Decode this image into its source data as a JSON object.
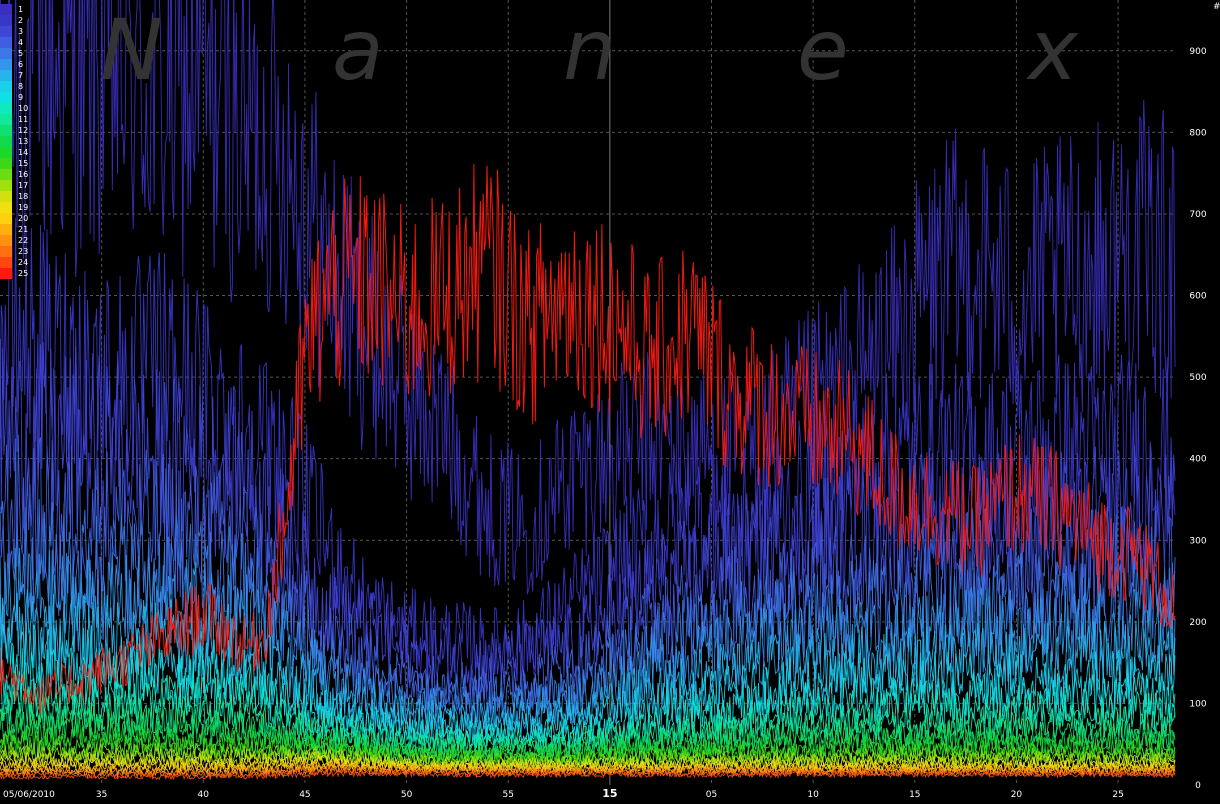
{
  "watermark": [
    "N",
    "a",
    "n",
    "e",
    "x"
  ],
  "colors": {
    "background": "#000000",
    "grid": "#555555",
    "tick_label": "#ffffff",
    "watermark": "#333333"
  },
  "chart_data": {
    "type": "line",
    "date_label": "05/06/2010",
    "y_unit_label": "#",
    "ylim": [
      0,
      950
    ],
    "y_ticks": [
      0,
      100,
      200,
      300,
      400,
      500,
      600,
      700,
      800,
      900
    ],
    "x_tick_labels": [
      "35",
      "40",
      "45",
      "50",
      "55",
      "15",
      "05",
      "10",
      "15",
      "20",
      "25"
    ],
    "x_tick_bold_index": 5,
    "grid": true,
    "legend_position": "top-left",
    "x_range_minutes": 57.8,
    "x_ticks_minutes": [
      5,
      10,
      15,
      20,
      25,
      30,
      35,
      40,
      45,
      50,
      55
    ],
    "series": [
      {
        "name": "1",
        "color": "#3a2fbf",
        "x": [
          0,
          2,
          4,
          6,
          8,
          10,
          12,
          14,
          15,
          16,
          18,
          20,
          22,
          24,
          26,
          28,
          30,
          32,
          34,
          36,
          38,
          40,
          42,
          44,
          46,
          48,
          50,
          52,
          54,
          56,
          57.8
        ],
        "values": [
          840,
          880,
          860,
          880,
          840,
          860,
          800,
          780,
          720,
          640,
          560,
          480,
          430,
          340,
          320,
          380,
          400,
          420,
          410,
          400,
          420,
          460,
          500,
          540,
          620,
          640,
          600,
          620,
          640,
          660,
          640
        ]
      },
      {
        "name": "2",
        "color": "#3837c8",
        "x": [
          0,
          2,
          4,
          6,
          8,
          10,
          12,
          14,
          16,
          18,
          20,
          22,
          24,
          26,
          28,
          30,
          32,
          34,
          36,
          38,
          40,
          42,
          44,
          46,
          48,
          50,
          52,
          54,
          56,
          57.8
        ],
        "values": [
          560,
          540,
          520,
          500,
          520,
          480,
          440,
          400,
          300,
          220,
          190,
          180,
          170,
          180,
          220,
          260,
          300,
          330,
          320,
          330,
          360,
          380,
          400,
          410,
          400,
          410,
          420,
          410,
          420,
          410
        ]
      },
      {
        "name": "3",
        "color": "#3f45d4",
        "x": [
          0,
          4,
          8,
          12,
          16,
          20,
          24,
          28,
          32,
          36,
          40,
          44,
          48,
          52,
          56,
          57.8
        ],
        "values": [
          430,
          420,
          400,
          380,
          220,
          160,
          150,
          170,
          240,
          280,
          300,
          320,
          330,
          320,
          330,
          320
        ]
      },
      {
        "name": "4",
        "color": "#3f5ee0",
        "x": [
          0,
          4,
          8,
          12,
          16,
          20,
          24,
          28,
          32,
          36,
          40,
          44,
          48,
          52,
          56,
          57.8
        ],
        "values": [
          340,
          330,
          320,
          300,
          180,
          130,
          120,
          140,
          200,
          230,
          250,
          260,
          270,
          265,
          270,
          260
        ]
      },
      {
        "name": "5",
        "color": "#3a78e6",
        "x": [
          0,
          4,
          8,
          12,
          16,
          20,
          24,
          28,
          32,
          36,
          40,
          44,
          48,
          52,
          56,
          57.8
        ],
        "values": [
          280,
          270,
          260,
          250,
          150,
          110,
          105,
          115,
          170,
          195,
          210,
          220,
          225,
          220,
          225,
          220
        ]
      },
      {
        "name": "6",
        "color": "#3296ea",
        "x": [
          0,
          4,
          8,
          12,
          16,
          20,
          24,
          28,
          32,
          36,
          40,
          44,
          48,
          52,
          56,
          57.8
        ],
        "values": [
          230,
          225,
          220,
          210,
          130,
          95,
          90,
          100,
          145,
          165,
          180,
          185,
          190,
          185,
          190,
          185
        ]
      },
      {
        "name": "7",
        "color": "#26b4ec",
        "x": [
          0,
          4,
          8,
          12,
          16,
          20,
          24,
          28,
          32,
          36,
          40,
          44,
          48,
          52,
          56,
          57.8
        ],
        "values": [
          190,
          185,
          180,
          175,
          110,
          85,
          80,
          85,
          120,
          140,
          150,
          155,
          160,
          155,
          160,
          155
        ]
      },
      {
        "name": "8",
        "color": "#1ad0ec",
        "x": [
          0,
          4,
          8,
          12,
          16,
          20,
          24,
          28,
          32,
          36,
          40,
          44,
          48,
          52,
          56,
          57.8
        ],
        "values": [
          160,
          155,
          150,
          145,
          95,
          75,
          70,
          75,
          100,
          115,
          125,
          130,
          130,
          130,
          130,
          128
        ]
      },
      {
        "name": "9",
        "color": "#10e0e0",
        "x": [
          0,
          4,
          8,
          12,
          16,
          20,
          24,
          28,
          32,
          36,
          40,
          44,
          48,
          52,
          56,
          57.8
        ],
        "values": [
          135,
          130,
          128,
          122,
          82,
          66,
          62,
          66,
          85,
          96,
          104,
          108,
          108,
          108,
          108,
          106
        ]
      },
      {
        "name": "10",
        "color": "#10e8c0",
        "x": [
          0,
          4,
          8,
          12,
          16,
          20,
          24,
          28,
          32,
          36,
          40,
          44,
          48,
          52,
          56,
          57.8
        ],
        "values": [
          112,
          108,
          106,
          102,
          72,
          58,
          55,
          58,
          72,
          80,
          86,
          90,
          90,
          90,
          90,
          88
        ]
      },
      {
        "name": "11",
        "color": "#10e89a",
        "x": [
          0,
          4,
          8,
          12,
          16,
          20,
          24,
          28,
          32,
          36,
          40,
          44,
          48,
          52,
          56,
          57.8
        ],
        "values": [
          94,
          90,
          88,
          85,
          64,
          52,
          49,
          52,
          62,
          68,
          73,
          76,
          76,
          76,
          76,
          75
        ]
      },
      {
        "name": "12",
        "color": "#10e070",
        "x": [
          0,
          4,
          8,
          12,
          16,
          20,
          24,
          28,
          32,
          36,
          40,
          44,
          48,
          52,
          56,
          57.8
        ],
        "values": [
          80,
          77,
          75,
          72,
          57,
          47,
          44,
          46,
          54,
          58,
          62,
          64,
          64,
          64,
          64,
          63
        ]
      },
      {
        "name": "13",
        "color": "#12d84c",
        "x": [
          0,
          4,
          8,
          12,
          16,
          20,
          24,
          28,
          32,
          36,
          40,
          44,
          48,
          52,
          56,
          57.8
        ],
        "values": [
          68,
          66,
          64,
          62,
          51,
          42,
          40,
          42,
          48,
          50,
          53,
          55,
          55,
          55,
          55,
          54
        ]
      },
      {
        "name": "14",
        "color": "#1cd82a",
        "x": [
          0,
          4,
          8,
          12,
          16,
          20,
          24,
          28,
          32,
          36,
          40,
          44,
          48,
          52,
          56,
          57.8
        ],
        "values": [
          58,
          56,
          55,
          53,
          46,
          38,
          36,
          38,
          42,
          44,
          46,
          47,
          47,
          47,
          47,
          46
        ]
      },
      {
        "name": "15",
        "color": "#3cd818",
        "x": [
          0,
          4,
          8,
          12,
          16,
          20,
          24,
          28,
          32,
          36,
          40,
          44,
          48,
          52,
          56,
          57.8
        ],
        "values": [
          50,
          48,
          47,
          46,
          42,
          35,
          33,
          34,
          37,
          39,
          40,
          41,
          41,
          41,
          41,
          40
        ]
      },
      {
        "name": "16",
        "color": "#6cdc12",
        "x": [
          0,
          4,
          8,
          12,
          16,
          20,
          24,
          28,
          32,
          36,
          40,
          44,
          48,
          52,
          56,
          57.8
        ],
        "values": [
          43,
          42,
          41,
          40,
          38,
          32,
          30,
          31,
          33,
          34,
          35,
          36,
          36,
          36,
          36,
          35
        ]
      },
      {
        "name": "17",
        "color": "#a0e010",
        "x": [
          0,
          4,
          8,
          12,
          16,
          20,
          24,
          28,
          32,
          36,
          40,
          44,
          48,
          52,
          56,
          57.8
        ],
        "values": [
          37,
          36,
          35,
          35,
          35,
          29,
          27,
          28,
          29,
          30,
          31,
          31,
          31,
          31,
          31,
          31
        ]
      },
      {
        "name": "18",
        "color": "#d0e010",
        "x": [
          0,
          4,
          8,
          12,
          16,
          20,
          24,
          28,
          32,
          36,
          40,
          44,
          48,
          52,
          56,
          57.8
        ],
        "values": [
          32,
          31,
          30,
          30,
          32,
          26,
          25,
          25,
          26,
          27,
          27,
          28,
          28,
          28,
          28,
          27
        ]
      },
      {
        "name": "19",
        "color": "#f0e010",
        "x": [
          0,
          4,
          8,
          12,
          16,
          20,
          24,
          28,
          32,
          36,
          40,
          44,
          48,
          52,
          56,
          57.8
        ],
        "values": [
          27,
          26,
          26,
          26,
          29,
          24,
          23,
          23,
          23,
          24,
          24,
          24,
          24,
          24,
          24,
          24
        ]
      },
      {
        "name": "20",
        "color": "#ffd010",
        "x": [
          0,
          4,
          8,
          12,
          16,
          20,
          24,
          28,
          32,
          36,
          40,
          44,
          48,
          52,
          56,
          57.8
        ],
        "values": [
          23,
          22,
          22,
          22,
          26,
          22,
          21,
          21,
          21,
          21,
          21,
          21,
          21,
          21,
          21,
          21
        ]
      },
      {
        "name": "21",
        "color": "#ffb010",
        "x": [
          0,
          4,
          8,
          12,
          16,
          20,
          24,
          28,
          32,
          36,
          40,
          44,
          48,
          52,
          56,
          57.8
        ],
        "values": [
          19,
          19,
          19,
          19,
          23,
          20,
          19,
          19,
          19,
          19,
          19,
          19,
          19,
          19,
          19,
          19
        ]
      },
      {
        "name": "22",
        "color": "#ff9010",
        "x": [
          0,
          4,
          8,
          12,
          16,
          20,
          24,
          28,
          32,
          36,
          40,
          44,
          48,
          52,
          56,
          57.8
        ],
        "values": [
          16,
          16,
          16,
          16,
          20,
          18,
          17,
          17,
          17,
          17,
          17,
          17,
          17,
          17,
          17,
          17
        ]
      },
      {
        "name": "23",
        "color": "#ff7010",
        "x": [
          0,
          4,
          8,
          12,
          16,
          20,
          24,
          28,
          32,
          36,
          40,
          44,
          48,
          52,
          56,
          57.8
        ],
        "values": [
          13,
          13,
          13,
          13,
          17,
          16,
          15,
          15,
          15,
          15,
          15,
          15,
          15,
          15,
          15,
          15
        ]
      },
      {
        "name": "24",
        "color": "#ff4810",
        "x": [
          0,
          4,
          8,
          12,
          16,
          20,
          24,
          28,
          32,
          36,
          40,
          44,
          48,
          52,
          56,
          57.8
        ],
        "values": [
          10,
          10,
          10,
          10,
          14,
          14,
          13,
          13,
          13,
          13,
          13,
          13,
          13,
          13,
          13,
          13
        ]
      },
      {
        "name": "25",
        "color": "#ff1a10",
        "x": [
          0,
          2,
          4,
          6,
          8,
          10,
          12,
          13,
          14,
          15,
          16,
          18,
          20,
          22,
          24,
          26,
          28,
          30,
          32,
          34,
          36,
          38,
          40,
          42,
          44,
          46,
          48,
          50,
          52,
          54,
          56,
          57.8
        ],
        "values": [
          140,
          110,
          130,
          150,
          180,
          210,
          170,
          180,
          320,
          520,
          600,
          620,
          580,
          600,
          640,
          560,
          600,
          580,
          520,
          560,
          480,
          460,
          440,
          420,
          360,
          340,
          320,
          360,
          340,
          300,
          280,
          220
        ]
      }
    ]
  }
}
